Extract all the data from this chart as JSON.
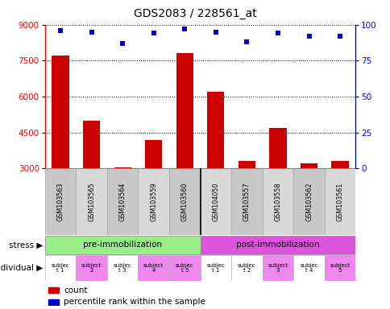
{
  "title": "GDS2083 / 228561_at",
  "samples": [
    "GSM103563",
    "GSM103565",
    "GSM103564",
    "GSM103559",
    "GSM103560",
    "GSM104050",
    "GSM103557",
    "GSM103558",
    "GSM103562",
    "GSM103561"
  ],
  "counts": [
    7700,
    5000,
    3050,
    4200,
    7800,
    6200,
    3300,
    4700,
    3200,
    3300
  ],
  "percentile_ranks": [
    96,
    95,
    87,
    94,
    97,
    95,
    88,
    94,
    92,
    92
  ],
  "ylim_left": [
    3000,
    9000
  ],
  "ylim_right": [
    0,
    100
  ],
  "yticks_left": [
    3000,
    4500,
    6000,
    7500,
    9000
  ],
  "yticks_right": [
    0,
    25,
    50,
    75,
    100
  ],
  "bar_color": "#cc0000",
  "dot_color": "#0000cc",
  "stress_groups": [
    {
      "label": "pre-immobilization",
      "start": 0,
      "end": 5,
      "color": "#99ee88"
    },
    {
      "label": "post-immobilization",
      "start": 5,
      "end": 10,
      "color": "#dd55dd"
    }
  ],
  "individual_labels": [
    "subjec\nt 1",
    "subject\n2",
    "subjec\nt 3",
    "subject\n4",
    "subjec\nt 5",
    "subjec\nt 1",
    "subjec\nt 2",
    "subject\n3",
    "subjec\nt 4",
    "subject\n5"
  ],
  "individual_colors": [
    "#ffffff",
    "#ee88ee",
    "#ffffff",
    "#ee88ee",
    "#ee88ee",
    "#ffffff",
    "#ffffff",
    "#ee88ee",
    "#ffffff",
    "#ee88ee"
  ],
  "legend_labels": [
    "count",
    "percentile rank within the sample"
  ],
  "legend_colors": [
    "#cc0000",
    "#0000cc"
  ]
}
